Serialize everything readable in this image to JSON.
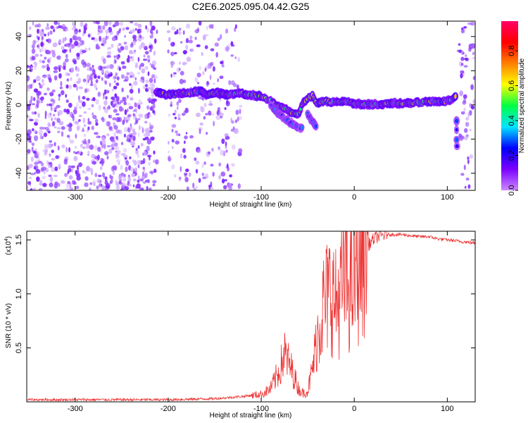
{
  "title": "C2E6.2025.095.04.42.G25",
  "colors": {
    "background": "#ffffff",
    "snr_line": "#ee3333",
    "speckle": "#8a2be2",
    "colorbar_stops": [
      "#cc88ff",
      "#7a00ff",
      "#0000ff",
      "#00e5ff",
      "#00ff44",
      "#ffff00",
      "#ff7f00",
      "#ff0000",
      "#ff0066"
    ]
  },
  "chart_data": [
    {
      "type": "heatmap",
      "title": "C2E6.2025.095.04.42.G25",
      "xlabel": "Height of straight line (km)",
      "ylabel": "Frequency (Hz)",
      "xlim": [
        -352,
        130
      ],
      "ylim": [
        -50,
        49
      ],
      "xticks": [
        -300,
        -200,
        -100,
        0,
        100
      ],
      "yticks": [
        -40,
        -20,
        0,
        20,
        40
      ],
      "colorbar": {
        "label": "Normalized spectral amplitude",
        "range": [
          0.0,
          0.97
        ],
        "ticks": [
          0.0,
          0.2,
          0.4,
          0.6,
          0.8
        ]
      },
      "noise_regions_km": [
        [
          -352,
          -212
        ],
        [
          -200,
          -150
        ],
        [
          -148,
          -122
        ],
        [
          112,
          130
        ]
      ],
      "signal_trace": {
        "x": [
          -212,
          -200,
          -180,
          -165,
          -158,
          -148,
          -135,
          -125,
          -112,
          -100,
          -90,
          -80,
          -72,
          -66,
          -60,
          -55,
          -50,
          -45,
          -40,
          -35,
          -30,
          -25,
          -20,
          -10,
          0,
          20,
          40,
          60,
          80,
          95,
          105,
          110
        ],
        "y": [
          7,
          6,
          7,
          8,
          6,
          7,
          6,
          7,
          6,
          5,
          2,
          -1,
          -3,
          -5,
          -5,
          1,
          4,
          5,
          1,
          2,
          2,
          1,
          2,
          2,
          1,
          0,
          1,
          1,
          2,
          2,
          3,
          5
        ]
      },
      "side_branches": [
        {
          "x": [
            -90,
            -80,
            -70,
            -60,
            -55
          ],
          "y": [
            0,
            -6,
            -10,
            -13,
            -14
          ]
        },
        {
          "x": [
            -50,
            -45,
            -40
          ],
          "y": [
            -5,
            -10,
            -13
          ]
        },
        {
          "x": [
            110,
            110,
            111
          ],
          "y": [
            -10,
            -20,
            -28
          ]
        }
      ]
    },
    {
      "type": "line",
      "xlabel": "Height of straight line (km)",
      "ylabel": "SNR (10 * v/v)",
      "y_multiplier_label": "(x10",
      "y_multiplier_exponent": "4",
      "xlim": [
        -352,
        130
      ],
      "ylim": [
        0.0,
        1.58
      ],
      "xticks": [
        -300,
        -200,
        -100,
        0,
        100
      ],
      "yticks": [
        "0.5",
        "1.0",
        "1.5"
      ],
      "series": [
        {
          "x": [
            -352,
            -300,
            -250,
            -200,
            -150,
            -120,
            -100,
            -90,
            -80,
            -75,
            -70,
            -65,
            -60,
            -55,
            -50,
            -45,
            -40,
            -35,
            -30,
            -25,
            -20,
            -15,
            -10,
            -5,
            0,
            5,
            10,
            15,
            20,
            25,
            30,
            35,
            40,
            50,
            60,
            70,
            80,
            90,
            100,
            110,
            120,
            130
          ],
          "y": [
            0.02,
            0.02,
            0.02,
            0.02,
            0.03,
            0.05,
            0.07,
            0.12,
            0.3,
            0.45,
            0.35,
            0.25,
            0.12,
            0.08,
            0.1,
            0.3,
            0.6,
            0.85,
            0.95,
            1.05,
            0.9,
            1.0,
            1.15,
            1.05,
            1.15,
            1.28,
            1.4,
            1.45,
            1.5,
            1.53,
            1.54,
            1.55,
            1.55,
            1.55,
            1.54,
            1.53,
            1.53,
            1.51,
            1.5,
            1.49,
            1.48,
            1.47
          ]
        }
      ]
    }
  ]
}
